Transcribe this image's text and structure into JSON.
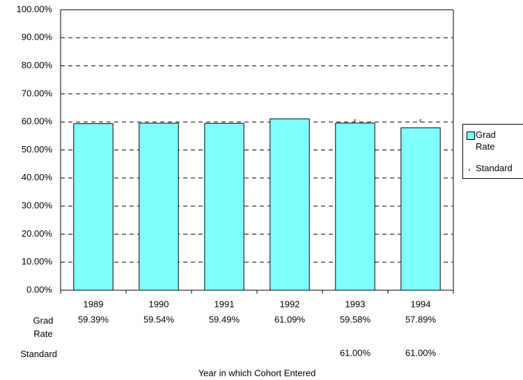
{
  "chart_data": {
    "type": "bar",
    "categories": [
      "1989",
      "1990",
      "1991",
      "1992",
      "1993",
      "1994"
    ],
    "series": [
      {
        "name": "Grad Rate",
        "color": "#80ffff",
        "values": [
          59.39,
          59.54,
          59.49,
          61.09,
          59.58,
          57.89
        ],
        "value_labels": [
          "59.39%",
          "59.54%",
          "59.49%",
          "61.09%",
          "59.58%",
          "57.89%"
        ]
      },
      {
        "name": "Standard",
        "color": "#000000",
        "values": [
          null,
          null,
          null,
          null,
          61.0,
          61.0
        ],
        "value_labels": [
          null,
          null,
          null,
          null,
          "61.00%",
          "61.00%"
        ]
      }
    ],
    "x_label": "Year in which Cohort Entered",
    "ylim": [
      0,
      100
    ],
    "yticks": [
      {
        "value": 0,
        "label": "0.00%"
      },
      {
        "value": 10,
        "label": "10.00%"
      },
      {
        "value": 20,
        "label": "20.00%"
      },
      {
        "value": 30,
        "label": "30.00%"
      },
      {
        "value": 40,
        "label": "40.00%"
      },
      {
        "value": 50,
        "label": "50.00%"
      },
      {
        "value": 60,
        "label": "60.00%"
      },
      {
        "value": 70,
        "label": "70.00%"
      },
      {
        "value": 80,
        "label": "80.00%"
      },
      {
        "value": 90,
        "label": "90.00%"
      },
      {
        "value": 100,
        "label": "100.00%"
      }
    ],
    "grid": true
  }
}
